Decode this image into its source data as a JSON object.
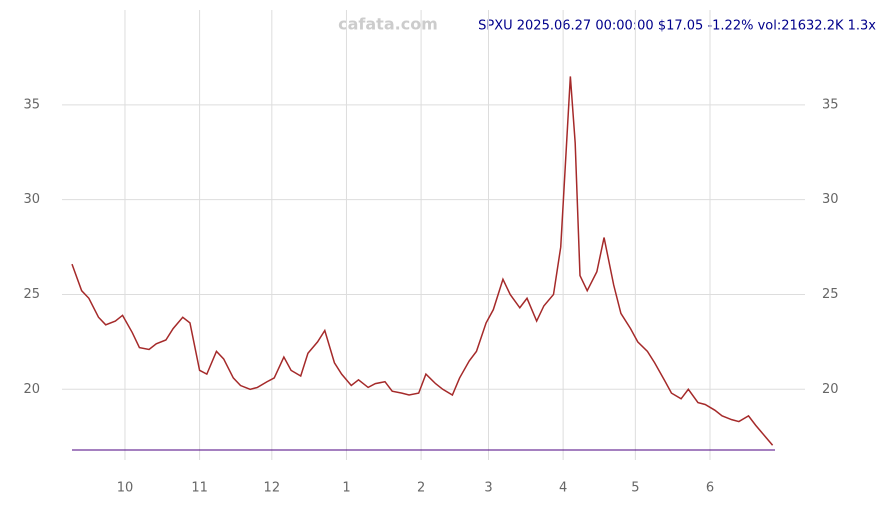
{
  "chart_data": {
    "type": "line",
    "watermark": "cafata.com",
    "title": "SPXU 2025.06.27 00:00:00 $17.05 -1.22% vol:21632.2K 1.3x",
    "x": [
      0,
      4,
      7,
      11,
      14,
      18,
      21,
      25,
      28,
      32,
      35,
      39,
      42,
      46,
      49,
      53,
      56,
      60,
      63,
      67,
      70,
      74,
      77,
      81,
      84,
      88,
      91,
      95,
      98,
      102,
      105,
      109,
      112,
      116,
      119,
      123,
      126,
      130,
      133,
      137,
      140,
      144,
      147,
      151,
      154,
      158,
      161,
      165,
      168,
      172,
      175,
      179,
      182,
      186,
      189,
      193,
      196,
      200,
      203,
      205,
      207,
      209,
      211,
      214,
      218,
      221,
      225,
      228,
      232,
      235,
      239,
      242,
      246,
      249,
      253,
      256,
      260,
      263,
      267,
      270,
      274,
      277,
      281,
      284,
      288,
      291
    ],
    "series": [
      {
        "color": "#a52a2a",
        "values": [
          26.6,
          25.2,
          24.8,
          23.8,
          23.4,
          23.6,
          23.9,
          23.0,
          22.2,
          22.1,
          22.4,
          22.6,
          23.2,
          23.8,
          23.5,
          21.0,
          20.8,
          22.0,
          21.6,
          20.6,
          20.2,
          20.0,
          20.1,
          20.4,
          20.6,
          21.7,
          21.0,
          20.7,
          21.9,
          22.5,
          23.1,
          21.4,
          20.8,
          20.2,
          20.5,
          20.1,
          20.3,
          20.4,
          19.9,
          19.8,
          19.7,
          19.8,
          20.8,
          20.3,
          20.0,
          19.7,
          20.6,
          21.5,
          22.0,
          23.5,
          24.2,
          25.8,
          25.0,
          24.3,
          24.8,
          23.6,
          24.4,
          25.0,
          27.5,
          32.0,
          36.5,
          33.0,
          26.0,
          25.2,
          26.2,
          28.0,
          25.5,
          24.0,
          23.2,
          22.5,
          22.0,
          21.4,
          20.5,
          19.8,
          19.5,
          20.0,
          19.3,
          19.2,
          18.9,
          18.6,
          18.4,
          18.3,
          18.6,
          18.1,
          17.5,
          17.05
        ]
      }
    ],
    "xlim": [
      0,
      292
    ],
    "xticks": [
      {
        "value": 22,
        "label": "10"
      },
      {
        "value": 53,
        "label": "11"
      },
      {
        "value": 83,
        "label": "12"
      },
      {
        "value": 114,
        "label": "1"
      },
      {
        "value": 145,
        "label": "2"
      },
      {
        "value": 173,
        "label": "3"
      },
      {
        "value": 204,
        "label": "4"
      },
      {
        "value": 234,
        "label": "5"
      },
      {
        "value": 265,
        "label": "6"
      }
    ],
    "ylim": [
      16.8,
      40
    ],
    "yticks": [
      20,
      25,
      30,
      35
    ],
    "grid": true
  }
}
